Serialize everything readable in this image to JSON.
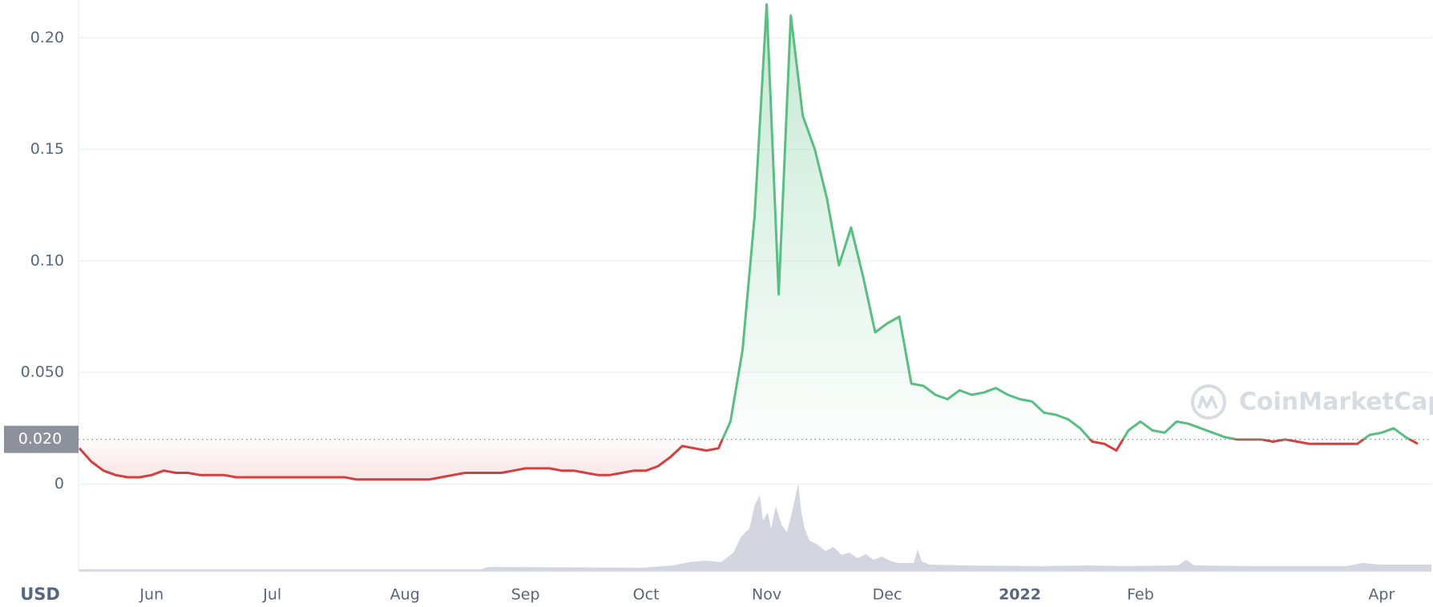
{
  "chart_data": {
    "type": "line",
    "axis_label": "USD",
    "watermark": "CoinMarketCap",
    "categories": [
      null,
      null,
      null,
      null,
      null,
      null,
      "Jun",
      null,
      null,
      null,
      null,
      null,
      null,
      null,
      null,
      null,
      "Jul",
      null,
      null,
      null,
      null,
      null,
      null,
      null,
      null,
      null,
      null,
      "Aug",
      null,
      null,
      null,
      null,
      null,
      null,
      null,
      null,
      null,
      "Sep",
      null,
      null,
      null,
      null,
      null,
      null,
      null,
      null,
      null,
      "Oct",
      null,
      null,
      null,
      null,
      null,
      null,
      null,
      null,
      null,
      "Nov",
      null,
      null,
      null,
      null,
      null,
      null,
      null,
      null,
      null,
      "Dec",
      null,
      null,
      null,
      null,
      null,
      null,
      null,
      null,
      null,
      null,
      "2022",
      null,
      null,
      null,
      null,
      null,
      null,
      null,
      null,
      null,
      "Feb",
      null,
      null,
      null,
      null,
      null,
      null,
      null,
      null,
      null,
      null,
      null,
      null,
      null,
      null,
      null,
      null,
      null,
      null,
      null,
      "Apr",
      null,
      null,
      null
    ],
    "values": [
      0.016,
      0.01,
      0.006,
      0.004,
      0.003,
      0.003,
      0.004,
      0.006,
      0.005,
      0.005,
      0.004,
      0.004,
      0.004,
      0.003,
      0.003,
      0.003,
      0.003,
      0.003,
      0.003,
      0.003,
      0.003,
      0.003,
      0.003,
      0.002,
      0.002,
      0.002,
      0.002,
      0.002,
      0.002,
      0.002,
      0.003,
      0.004,
      0.005,
      0.005,
      0.005,
      0.005,
      0.006,
      0.007,
      0.007,
      0.007,
      0.006,
      0.006,
      0.005,
      0.004,
      0.004,
      0.005,
      0.006,
      0.006,
      0.008,
      0.012,
      0.017,
      0.016,
      0.015,
      0.016,
      0.028,
      0.06,
      0.12,
      0.215,
      0.085,
      0.21,
      0.165,
      0.15,
      0.128,
      0.098,
      0.115,
      0.093,
      0.068,
      0.072,
      0.075,
      0.045,
      0.044,
      0.04,
      0.038,
      0.042,
      0.04,
      0.041,
      0.043,
      0.04,
      0.038,
      0.037,
      0.032,
      0.031,
      0.029,
      0.025,
      0.019,
      0.018,
      0.015,
      0.024,
      0.028,
      0.024,
      0.023,
      0.028,
      0.027,
      0.025,
      0.023,
      0.021,
      0.02,
      0.02,
      0.02,
      0.019,
      0.02,
      0.019,
      0.018,
      0.018,
      0.018,
      0.018,
      0.018,
      0.022,
      0.023,
      0.025,
      0.021,
      0.018
    ],
    "reference": {
      "value": 0.02,
      "label": "0.020"
    },
    "up_color": "#58be82",
    "down_color": "#d63f3f",
    "ylim": [
      -0.039,
      0.217
    ],
    "yticks": [
      0,
      {
        "value": 0.05,
        "label": "0.050"
      },
      {
        "value": 0.1,
        "label": "0.10"
      },
      {
        "value": 0.15,
        "label": "0.15"
      },
      {
        "value": 0.2,
        "label": "0.20"
      }
    ],
    "grid": true
  }
}
